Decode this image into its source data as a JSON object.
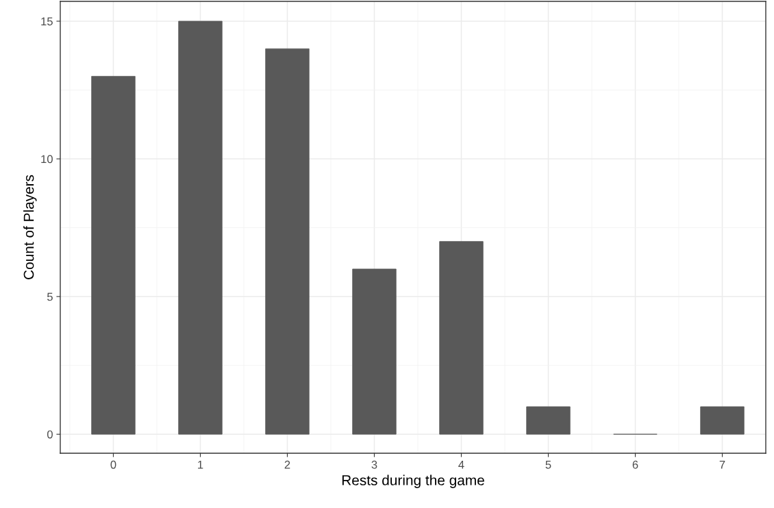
{
  "chart_data": {
    "type": "bar",
    "xlabel": "Rests during the game",
    "ylabel": "Count of Players",
    "x": [
      0,
      1,
      2,
      3,
      4,
      5,
      6,
      7
    ],
    "values": [
      13,
      15,
      14,
      6,
      7,
      1,
      0,
      1
    ],
    "color": "#595959",
    "xlim": [
      -0.61,
      7.5
    ],
    "xticks": [
      0,
      1,
      2,
      3,
      4,
      5,
      6,
      7
    ],
    "ylim": [
      -0.69,
      15.72
    ],
    "yticks": [
      0,
      5,
      10,
      15
    ],
    "grid": true
  }
}
